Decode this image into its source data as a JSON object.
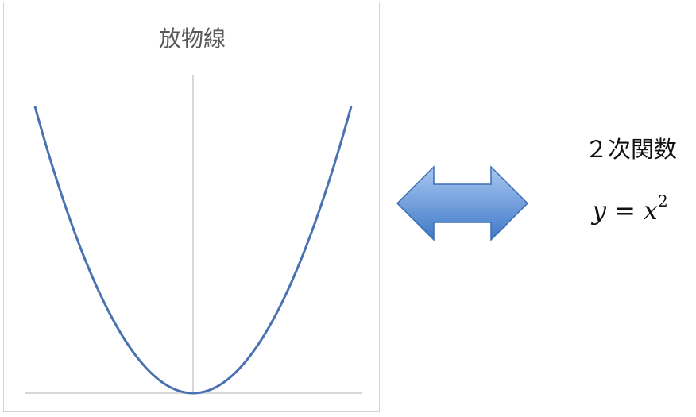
{
  "chart_data": {
    "type": "line",
    "title": "放物線",
    "function": "y = x^2",
    "x": [
      -3,
      -2.5,
      -2,
      -1.5,
      -1,
      -0.5,
      0,
      0.5,
      1,
      1.5,
      2,
      2.5,
      3
    ],
    "series": [
      {
        "values": [
          9,
          6.25,
          4,
          2.25,
          1,
          0.25,
          0,
          0.25,
          1,
          2.25,
          4,
          6.25,
          9
        ]
      }
    ],
    "xlim": [
      -3.2,
      3.2
    ],
    "ylim": [
      0,
      10
    ],
    "x_axis_visible": true,
    "y_axis_visible": true,
    "grid": false,
    "tick_labels": false,
    "legend": "none",
    "line_color": "#4a72b0",
    "axis_color": "#bfbfbf"
  },
  "arrow": {
    "icon": "double-headed-arrow",
    "color_light": "#a9c8f0",
    "color_dark": "#3f78c8",
    "stroke": "#3b6db3"
  },
  "label": {
    "name": "２次関数",
    "formula_lhs": "y",
    "formula_eq": "=",
    "formula_base": "x",
    "formula_exp": "2"
  }
}
